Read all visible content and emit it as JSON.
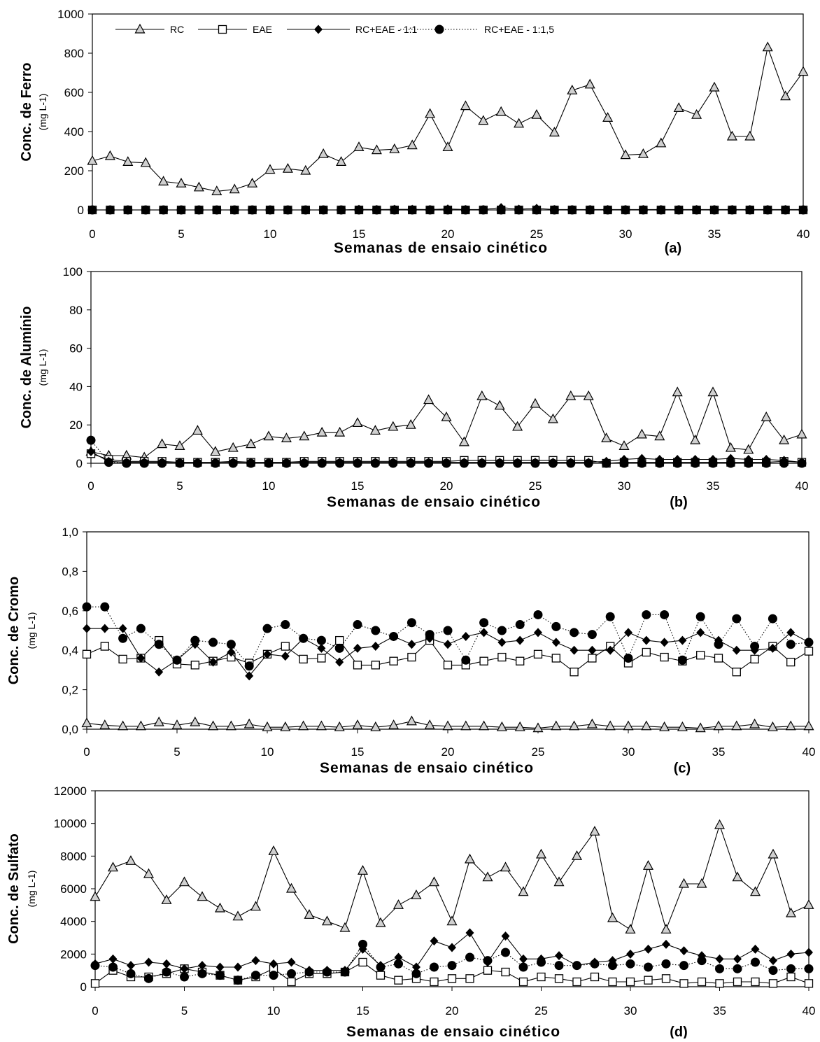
{
  "figure": {
    "legend": {
      "placement": "top of panel (a)",
      "entries": [
        "RC",
        "EAE",
        "RC+EAE - 1:1",
        "RC+EAE - 1:1,5"
      ]
    }
  },
  "chart_data": [
    {
      "type": "line",
      "panel_label": "(a)",
      "ylabel": "Conc. de Ferro",
      "yunit": "(mg L-1)",
      "xlabel": "Semanas de ensaio cinético",
      "xlim": [
        0,
        40
      ],
      "ylim": [
        0,
        1000
      ],
      "xticks": [
        "0",
        "5",
        "10",
        "15",
        "20",
        "25",
        "30",
        "35",
        "40"
      ],
      "yticks": [
        "0",
        "200",
        "400",
        "600",
        "800",
        "1000"
      ],
      "x": [
        0,
        1,
        2,
        3,
        4,
        5,
        6,
        7,
        8,
        9,
        10,
        11,
        12,
        13,
        14,
        15,
        16,
        17,
        18,
        19,
        20,
        21,
        22,
        23,
        24,
        25,
        26,
        27,
        28,
        29,
        30,
        31,
        32,
        33,
        34,
        35,
        36,
        37,
        38,
        39,
        40
      ],
      "series": [
        {
          "name": "RC",
          "marker": "triangle",
          "dash": "solid",
          "values": [
            250,
            275,
            245,
            240,
            145,
            135,
            115,
            95,
            105,
            135,
            205,
            210,
            200,
            285,
            245,
            320,
            305,
            310,
            330,
            490,
            320,
            530,
            455,
            500,
            440,
            485,
            395,
            610,
            640,
            470,
            280,
            285,
            340,
            520,
            485,
            625,
            375,
            375,
            830,
            580,
            705
          ]
        },
        {
          "name": "EAE",
          "marker": "square",
          "dash": "solid",
          "values": [
            0,
            0,
            0,
            0,
            0,
            0,
            0,
            0,
            0,
            0,
            0,
            0,
            0,
            0,
            0,
            0,
            0,
            0,
            0,
            0,
            0,
            0,
            0,
            0,
            0,
            0,
            0,
            0,
            0,
            0,
            0,
            0,
            0,
            0,
            0,
            0,
            0,
            0,
            0,
            0,
            0
          ]
        },
        {
          "name": "RC+EAE - 1:1",
          "marker": "diamond",
          "dash": "solid",
          "values": [
            0,
            0,
            0,
            0,
            0,
            0,
            0,
            0,
            0,
            0,
            0,
            0,
            0,
            0,
            0,
            3,
            2,
            3,
            3,
            2,
            5,
            2,
            2,
            12,
            4,
            8,
            2,
            2,
            2,
            2,
            2,
            2,
            2,
            2,
            2,
            2,
            2,
            2,
            2,
            2,
            2
          ]
        },
        {
          "name": "RC+EAE - 1:1,5",
          "marker": "circle",
          "dash": "dotted",
          "values": [
            0,
            0,
            0,
            0,
            0,
            0,
            0,
            0,
            0,
            0,
            0,
            0,
            0,
            0,
            0,
            0,
            0,
            0,
            0,
            0,
            0,
            0,
            0,
            0,
            0,
            0,
            0,
            0,
            0,
            0,
            0,
            0,
            0,
            0,
            0,
            0,
            0,
            0,
            0,
            0,
            0
          ]
        }
      ]
    },
    {
      "type": "line",
      "panel_label": "(b)",
      "ylabel": "Conc. de Alumínio",
      "yunit": "(mg L-1)",
      "xlabel": "Semanas de ensaio cinético",
      "xlim": [
        0,
        40
      ],
      "ylim": [
        0,
        100
      ],
      "xticks": [
        "0",
        "5",
        "10",
        "15",
        "20",
        "25",
        "30",
        "35",
        "40"
      ],
      "yticks": [
        "0",
        "20",
        "40",
        "60",
        "80",
        "100"
      ],
      "x": [
        0,
        1,
        2,
        3,
        4,
        5,
        6,
        7,
        8,
        9,
        10,
        11,
        12,
        13,
        14,
        15,
        16,
        17,
        18,
        19,
        20,
        21,
        22,
        23,
        24,
        25,
        26,
        27,
        28,
        29,
        30,
        31,
        32,
        33,
        34,
        35,
        36,
        37,
        38,
        39,
        40
      ],
      "series": [
        {
          "name": "RC",
          "marker": "triangle",
          "dash": "solid",
          "values": [
            6,
            4,
            4,
            3,
            10,
            9,
            17,
            6,
            8,
            10,
            14,
            13,
            14,
            16,
            16,
            21,
            17,
            19,
            20,
            33,
            24,
            11,
            35,
            30,
            19,
            31,
            23,
            35,
            35,
            13,
            9,
            15,
            14,
            37,
            12,
            37,
            8,
            7,
            24,
            12,
            15
          ]
        },
        {
          "name": "EAE",
          "marker": "square",
          "dash": "solid",
          "values": [
            5,
            2,
            1,
            1,
            1,
            0.5,
            0.5,
            0.5,
            1,
            0.5,
            0.5,
            0.5,
            1,
            1,
            1,
            1,
            1,
            1,
            1,
            1,
            1,
            1.5,
            1.5,
            1.5,
            1.5,
            1.5,
            1.5,
            1.5,
            1.5,
            0,
            0.5,
            0.5,
            0.5,
            0.5,
            0.5,
            0.5,
            0.5,
            0.5,
            0.5,
            1,
            0.5
          ]
        },
        {
          "name": "RC+EAE - 1:1",
          "marker": "diamond",
          "dash": "solid",
          "values": [
            6,
            1,
            0.5,
            0.5,
            0.5,
            0.5,
            0.5,
            0.5,
            0.5,
            0.5,
            0.5,
            0.5,
            0.5,
            0.5,
            0.5,
            0.5,
            0.5,
            0.5,
            0.5,
            0.5,
            0.5,
            0.5,
            0.5,
            0.5,
            0.5,
            0.5,
            0.5,
            0.5,
            0.5,
            1,
            2,
            2.5,
            2,
            2,
            2,
            2,
            2.5,
            2,
            2,
            1.5,
            0.5
          ]
        },
        {
          "name": "RC+EAE - 1:1,5",
          "marker": "circle",
          "dash": "dotted",
          "values": [
            12,
            0.5,
            0,
            0,
            0,
            0,
            0,
            0,
            0,
            0,
            0,
            0,
            0,
            0,
            0,
            0,
            0,
            0,
            0,
            0,
            0,
            0,
            0,
            0,
            0,
            0,
            0,
            0,
            0,
            0,
            0,
            0,
            0,
            0,
            0,
            0,
            0,
            0,
            0,
            0,
            0
          ]
        }
      ]
    },
    {
      "type": "line",
      "panel_label": "(c)",
      "ylabel": "Conc. de Cromo",
      "yunit": "(mg L-1)",
      "xlabel": "Semanas de ensaio cinético",
      "xlim": [
        0,
        40
      ],
      "ylim": [
        0,
        1
      ],
      "xticks": [
        "0",
        "5",
        "10",
        "15",
        "20",
        "25",
        "30",
        "35",
        "40"
      ],
      "yticks": [
        "0,0",
        "0,2",
        "0,4",
        "0,6",
        "0,8",
        "1,0"
      ],
      "x": [
        0,
        1,
        2,
        3,
        4,
        5,
        6,
        7,
        8,
        9,
        10,
        11,
        12,
        13,
        14,
        15,
        16,
        17,
        18,
        19,
        20,
        21,
        22,
        23,
        24,
        25,
        26,
        27,
        28,
        29,
        30,
        31,
        32,
        33,
        34,
        35,
        36,
        37,
        38,
        39,
        40
      ],
      "series": [
        {
          "name": "RC",
          "marker": "triangle",
          "dash": "solid",
          "values": [
            0.03,
            0.02,
            0.015,
            0.015,
            0.035,
            0.02,
            0.035,
            0.015,
            0.015,
            0.025,
            0.01,
            0.01,
            0.015,
            0.015,
            0.01,
            0.02,
            0.01,
            0.02,
            0.04,
            0.02,
            0.015,
            0.015,
            0.015,
            0.01,
            0.01,
            0.005,
            0.015,
            0.015,
            0.025,
            0.015,
            0.015,
            0.015,
            0.01,
            0.01,
            0.005,
            0.015,
            0.015,
            0.025,
            0.01,
            0.015,
            0.015
          ]
        },
        {
          "name": "EAE",
          "marker": "square",
          "dash": "solid",
          "values": [
            0.38,
            0.42,
            0.355,
            0.36,
            0.45,
            0.33,
            0.325,
            0.345,
            0.365,
            0.335,
            0.38,
            0.42,
            0.355,
            0.36,
            0.45,
            0.325,
            0.325,
            0.345,
            0.365,
            0.45,
            0.325,
            0.325,
            0.345,
            0.365,
            0.345,
            0.38,
            0.36,
            0.29,
            0.36,
            0.42,
            0.335,
            0.39,
            0.365,
            0.345,
            0.375,
            0.36,
            0.29,
            0.355,
            0.42,
            0.34,
            0.395
          ]
        },
        {
          "name": "RC+EAE - 1:1",
          "marker": "diamond",
          "dash": "solid",
          "values": [
            0.51,
            0.51,
            0.51,
            0.36,
            0.29,
            0.35,
            0.43,
            0.34,
            0.39,
            0.27,
            0.38,
            0.37,
            0.46,
            0.41,
            0.34,
            0.41,
            0.42,
            0.47,
            0.43,
            0.46,
            0.43,
            0.47,
            0.49,
            0.44,
            0.45,
            0.49,
            0.44,
            0.4,
            0.4,
            0.4,
            0.49,
            0.45,
            0.44,
            0.45,
            0.49,
            0.45,
            0.4,
            0.4,
            0.41,
            0.49,
            0.44
          ]
        },
        {
          "name": "RC+EAE - 1:1,5",
          "marker": "circle",
          "dash": "dotted",
          "values": [
            0.62,
            0.62,
            0.46,
            0.51,
            0.43,
            0.35,
            0.45,
            0.44,
            0.43,
            0.32,
            0.51,
            0.53,
            0.46,
            0.45,
            0.41,
            0.53,
            0.5,
            0.47,
            0.54,
            0.48,
            0.5,
            0.35,
            0.54,
            0.5,
            0.53,
            0.58,
            0.52,
            0.49,
            0.48,
            0.57,
            0.36,
            0.58,
            0.58,
            0.35,
            0.57,
            0.43,
            0.56,
            0.42,
            0.56,
            0.43,
            0.44
          ]
        }
      ]
    },
    {
      "type": "line",
      "panel_label": "(d)",
      "ylabel": "Conc. de Sulfato",
      "yunit": "(mg L-1)",
      "xlabel": "Semanas de ensaio cinético",
      "xlim": [
        0,
        40
      ],
      "ylim": [
        0,
        12000
      ],
      "xticks": [
        "0",
        "5",
        "10",
        "15",
        "20",
        "25",
        "30",
        "35",
        "40"
      ],
      "yticks": [
        "0",
        "2000",
        "4000",
        "6000",
        "8000",
        "10000",
        "12000"
      ],
      "x": [
        0,
        1,
        2,
        3,
        4,
        5,
        6,
        7,
        8,
        9,
        10,
        11,
        12,
        13,
        14,
        15,
        16,
        17,
        18,
        19,
        20,
        21,
        22,
        23,
        24,
        25,
        26,
        27,
        28,
        29,
        30,
        31,
        32,
        33,
        34,
        35,
        36,
        37,
        38,
        39,
        40
      ],
      "series": [
        {
          "name": "RC",
          "marker": "triangle",
          "dash": "solid",
          "values": [
            5500,
            7300,
            7700,
            6900,
            5300,
            6400,
            5500,
            4800,
            4300,
            4900,
            8300,
            6000,
            4400,
            4000,
            3600,
            7100,
            3900,
            5000,
            5600,
            6400,
            4000,
            7800,
            6700,
            7300,
            5800,
            8100,
            6400,
            8000,
            9500,
            4200,
            3500,
            7400,
            3500,
            6300,
            6300,
            9900,
            6700,
            5800,
            8100,
            4500,
            5000
          ]
        },
        {
          "name": "EAE",
          "marker": "square",
          "dash": "solid",
          "values": [
            200,
            1000,
            600,
            600,
            800,
            1100,
            900,
            700,
            400,
            600,
            1100,
            300,
            800,
            800,
            900,
            1500,
            700,
            400,
            500,
            300,
            500,
            500,
            1000,
            900,
            300,
            600,
            500,
            300,
            600,
            300,
            300,
            400,
            500,
            200,
            300,
            200,
            300,
            300,
            200,
            600,
            200
          ]
        },
        {
          "name": "RC+EAE - 1:1",
          "marker": "diamond",
          "dash": "solid",
          "values": [
            1400,
            1700,
            1300,
            1500,
            1400,
            1100,
            1300,
            1200,
            1200,
            1600,
            1400,
            1500,
            1000,
            1000,
            1000,
            2300,
            1300,
            1800,
            1200,
            2800,
            2400,
            3300,
            1500,
            3100,
            1700,
            1700,
            1900,
            1300,
            1500,
            1600,
            2000,
            2300,
            2600,
            2200,
            1900,
            1700,
            1700,
            2300,
            1600,
            2000,
            2100
          ]
        },
        {
          "name": "RC+EAE - 1:1,5",
          "marker": "circle",
          "dash": "dotted",
          "values": [
            1300,
            1200,
            800,
            500,
            900,
            600,
            800,
            700,
            400,
            700,
            700,
            800,
            900,
            900,
            900,
            2600,
            1200,
            1400,
            800,
            1200,
            1300,
            1800,
            1600,
            2100,
            1200,
            1500,
            1300,
            1300,
            1400,
            1300,
            1400,
            1200,
            1400,
            1300,
            1600,
            1100,
            1100,
            1500,
            1000,
            1100,
            1100
          ]
        }
      ]
    }
  ]
}
